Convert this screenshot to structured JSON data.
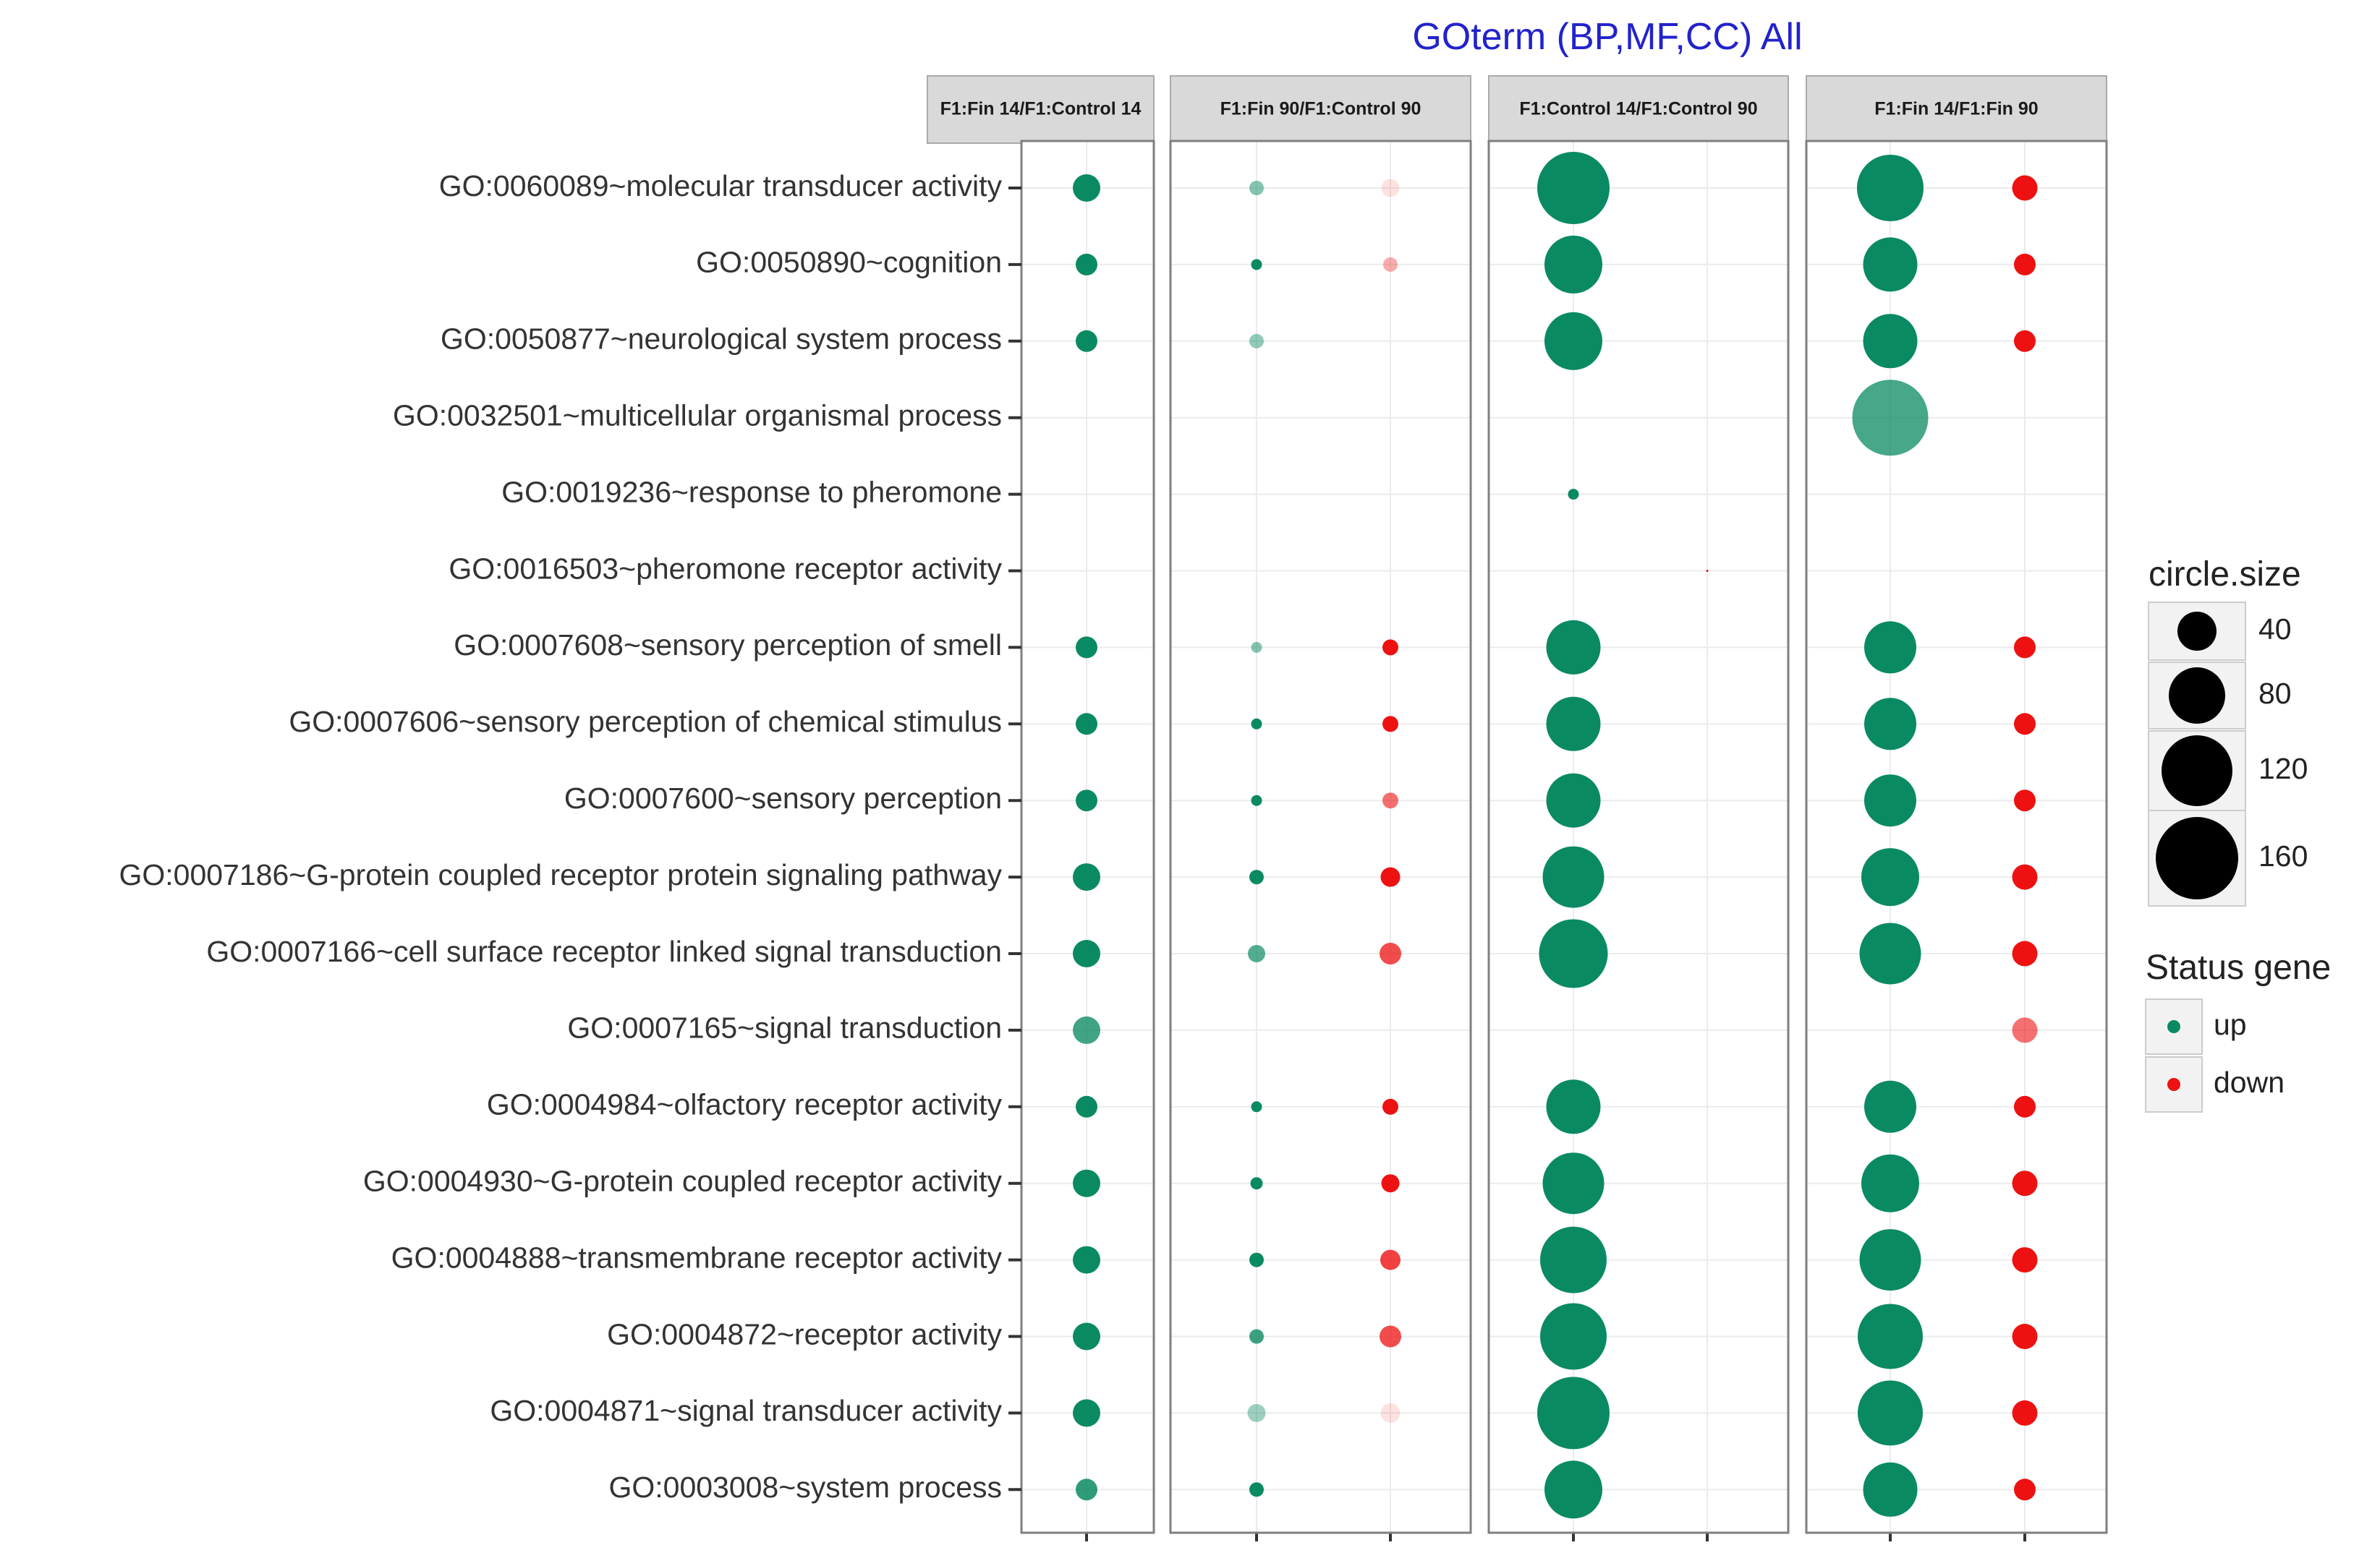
{
  "chart_data": {
    "type": "scatter",
    "title": "GOterm (BP,MF,CC) All",
    "colors": {
      "up": "#0a8a62",
      "down": "#ee1111",
      "title": "#2222cc"
    },
    "rows": [
      "GO:0060089~molecular transducer activity",
      "GO:0050890~cognition",
      "GO:0050877~neurological system process",
      "GO:0032501~multicellular organismal process",
      "GO:0019236~response to pheromone",
      "GO:0016503~pheromone receptor activity",
      "GO:0007608~sensory perception of smell",
      "GO:0007606~sensory perception of chemical stimulus",
      "GO:0007600~sensory perception",
      "GO:0007186~G-protein coupled receptor protein signaling pathway",
      "GO:0007166~cell surface receptor linked signal transduction",
      "GO:0007165~signal transduction",
      "GO:0004984~olfactory receptor activity",
      "GO:0004930~G-protein coupled receptor activity",
      "GO:0004888~transmembrane receptor activity",
      "GO:0004872~receptor activity",
      "GO:0004871~signal transducer activity",
      "GO:0003008~system process"
    ],
    "panels": [
      {
        "label": "F1:Fin 14/F1:Control 14",
        "up": {
          "size": [
            38,
            30,
            30,
            null,
            null,
            null,
            30,
            30,
            30,
            38,
            38,
            38,
            30,
            38,
            38,
            38,
            38,
            30
          ],
          "alpha": [
            1,
            1,
            1,
            null,
            null,
            null,
            1,
            1,
            1,
            1,
            1,
            0.78,
            1,
            1,
            1,
            1,
            1,
            0.85
          ]
        },
        "down": {
          "size": [
            null,
            null,
            null,
            null,
            null,
            null,
            null,
            null,
            null,
            null,
            null,
            null,
            null,
            null,
            null,
            null,
            null,
            null
          ],
          "alpha": [
            null,
            null,
            null,
            null,
            null,
            null,
            null,
            null,
            null,
            null,
            null,
            null,
            null,
            null,
            null,
            null,
            null,
            null
          ]
        }
      },
      {
        "label": "F1:Fin 90/F1:Control 90",
        "up": {
          "size": [
            20,
            15,
            20,
            null,
            null,
            null,
            15,
            15,
            15,
            20,
            24,
            null,
            15,
            17,
            20,
            20,
            25,
            20
          ],
          "alpha": [
            0.5,
            1,
            0.45,
            null,
            null,
            null,
            0.5,
            1,
            1,
            1,
            0.7,
            null,
            1,
            1,
            1,
            0.8,
            0.4,
            1
          ]
        },
        "down": {
          "size": [
            25,
            20,
            null,
            null,
            null,
            null,
            22,
            22,
            22,
            27,
            30,
            null,
            22,
            25,
            28,
            30,
            27,
            null
          ],
          "alpha": [
            0.12,
            0.35,
            null,
            null,
            null,
            null,
            1,
            1,
            0.6,
            1,
            0.75,
            null,
            1,
            1,
            0.8,
            0.75,
            0.12,
            null
          ]
        }
      },
      {
        "label": "F1:Control 14/F1:Control 90",
        "up": {
          "size": [
            100,
            80,
            80,
            null,
            15,
            null,
            75,
            75,
            75,
            85,
            95,
            null,
            75,
            85,
            92,
            92,
            100,
            80
          ],
          "alpha": [
            1,
            1,
            1,
            null,
            1,
            null,
            1,
            1,
            1,
            1,
            1,
            null,
            1,
            1,
            1,
            1,
            1,
            1
          ]
        },
        "down": {
          "size": [
            null,
            null,
            null,
            null,
            null,
            3,
            null,
            null,
            null,
            null,
            null,
            null,
            null,
            null,
            null,
            null,
            null,
            null
          ],
          "alpha": [
            null,
            null,
            null,
            null,
            null,
            1,
            null,
            null,
            null,
            null,
            null,
            null,
            null,
            null,
            null,
            null,
            null,
            null
          ]
        }
      },
      {
        "label": "F1:Fin 14/F1:Fin 90",
        "up": {
          "size": [
            92,
            75,
            75,
            105,
            null,
            null,
            72,
            72,
            72,
            80,
            85,
            null,
            72,
            80,
            85,
            90,
            90,
            75
          ],
          "alpha": [
            1,
            1,
            1,
            0.75,
            null,
            null,
            1,
            1,
            1,
            1,
            1,
            null,
            1,
            1,
            1,
            1,
            1,
            1
          ]
        },
        "down": {
          "size": [
            35,
            30,
            30,
            null,
            null,
            null,
            30,
            30,
            30,
            35,
            35,
            35,
            30,
            35,
            35,
            35,
            35,
            30
          ],
          "alpha": [
            1,
            1,
            1,
            null,
            null,
            null,
            1,
            1,
            1,
            1,
            1,
            0.6,
            1,
            1,
            1,
            1,
            1,
            1
          ]
        }
      }
    ],
    "legend_size": {
      "title": "circle.size",
      "values": [
        40,
        80,
        120,
        160
      ],
      "placement": "right"
    },
    "legend_status": {
      "title": "Status gene",
      "entries": [
        "up",
        "down"
      ],
      "placement": "right"
    }
  }
}
